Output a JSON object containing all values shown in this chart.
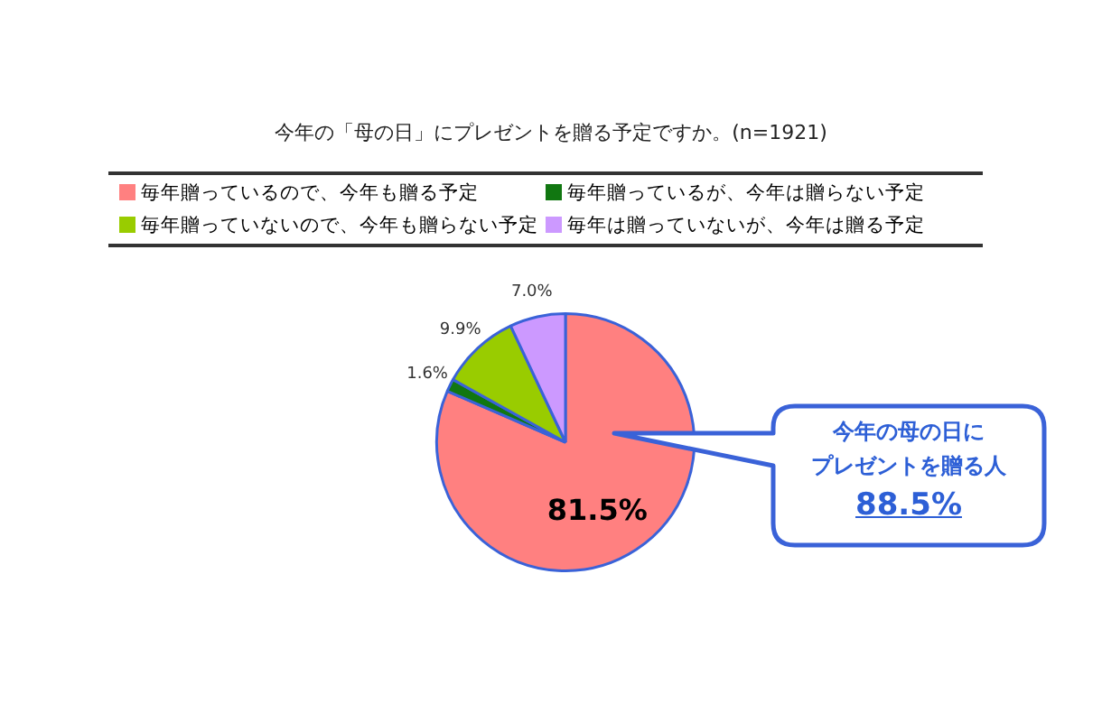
{
  "chart_data": {
    "type": "pie",
    "title": "今年の「母の日」にプレゼントを贈る予定ですか。(n=1921)",
    "categories": [
      "毎年贈っているので、今年も贈る予定",
      "毎年贈っているが、今年は贈らない予定",
      "毎年贈っていないので、今年も贈らない予定",
      "毎年は贈っていないが、今年は贈る予定"
    ],
    "values": [
      81.5,
      1.6,
      9.9,
      7.0
    ],
    "colors": [
      "#ff8080",
      "#117711",
      "#99cc00",
      "#cc99ff"
    ],
    "value_labels": [
      "81.5%",
      "1.6%",
      "9.9%",
      "7.0%"
    ],
    "legend": "top",
    "annotations": [
      "今年の母の日に",
      "プレゼントを贈る人",
      "88.5%"
    ]
  }
}
